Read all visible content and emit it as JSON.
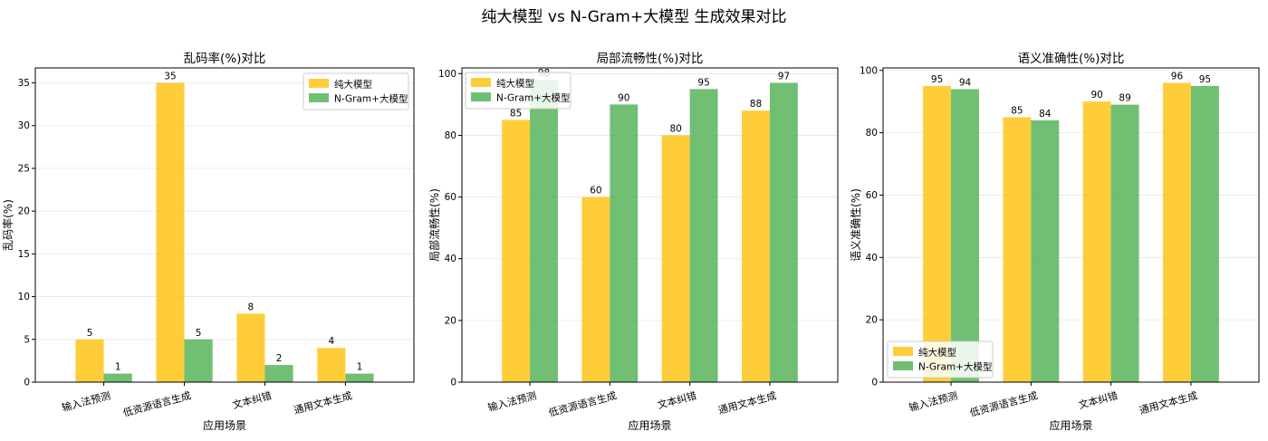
{
  "figure": {
    "title": "纯大模型 vs N-Gram+大模型 生成效果对比"
  },
  "colors": {
    "series1": "#FFC107",
    "series2": "#4CAF50"
  },
  "chart_data": [
    {
      "type": "bar",
      "title": "乱码率(%)对比",
      "xlabel": "应用场景",
      "ylabel": "乱码率(%)",
      "categories": [
        "输入法预测",
        "低资源语言生成",
        "文本纠错",
        "通用文本生成"
      ],
      "series": [
        {
          "name": "纯大模型",
          "values": [
            5,
            35,
            8,
            4
          ]
        },
        {
          "name": "N-Gram+大模型",
          "values": [
            1,
            5,
            2,
            1
          ]
        }
      ],
      "ylim": [
        0,
        36.75
      ],
      "yticks": [
        0,
        5,
        10,
        15,
        20,
        25,
        30,
        35
      ],
      "legend": "top-right",
      "grid": true
    },
    {
      "type": "bar",
      "title": "局部流畅性(%)对比",
      "xlabel": "应用场景",
      "ylabel": "局部流畅性(%)",
      "categories": [
        "输入法预测",
        "低资源语言生成",
        "文本纠错",
        "通用文本生成"
      ],
      "series": [
        {
          "name": "纯大模型",
          "values": [
            85,
            60,
            80,
            88
          ]
        },
        {
          "name": "N-Gram+大模型",
          "values": [
            98,
            90,
            95,
            97
          ]
        }
      ],
      "ylim": [
        0,
        101.85
      ],
      "yticks": [
        0,
        20,
        40,
        60,
        80,
        100
      ],
      "legend": "top-left",
      "grid": true
    },
    {
      "type": "bar",
      "title": "语义准确性(%)对比",
      "xlabel": "应用场景",
      "ylabel": "语义准确性(%)",
      "categories": [
        "输入法预测",
        "低资源语言生成",
        "文本纠错",
        "通用文本生成"
      ],
      "series": [
        {
          "name": "纯大模型",
          "values": [
            95,
            85,
            90,
            96
          ]
        },
        {
          "name": "N-Gram+大模型",
          "values": [
            94,
            84,
            89,
            95
          ]
        }
      ],
      "ylim": [
        0,
        100.8
      ],
      "yticks": [
        0,
        20,
        40,
        60,
        80,
        100
      ],
      "legend": "bottom-left",
      "grid": true
    }
  ]
}
